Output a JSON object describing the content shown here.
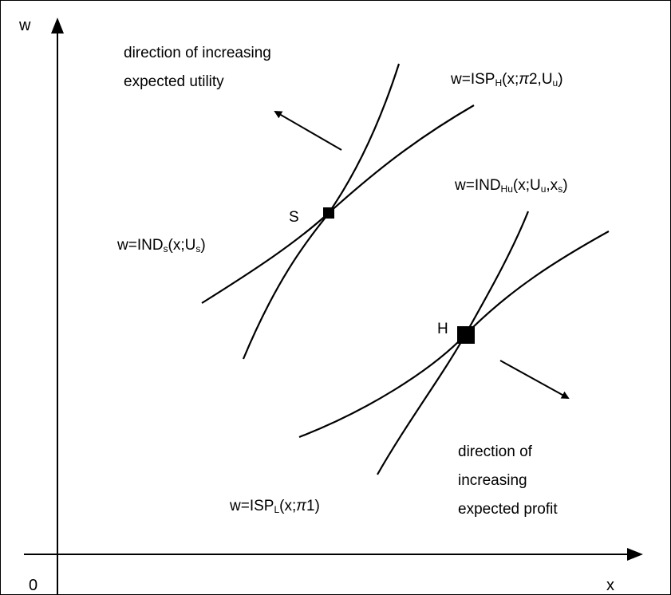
{
  "axes": {
    "y_label": "w",
    "x_label": "x",
    "origin_label": "0"
  },
  "points": {
    "s_label": "S",
    "h_label": "H"
  },
  "curves": {
    "isp_h": {
      "pre": "w=ISP",
      "sub1": "H",
      "mid": "(x;",
      "pi": "π",
      "post1": "2,U",
      "sub2": "u",
      "post2": ")"
    },
    "ind_hu": {
      "pre": "w=IND",
      "sub1": "Hu",
      "mid1": "(x;U",
      "sub2": "u",
      "mid2": ",x",
      "sub3": "s",
      "post": ")"
    },
    "ind_s": {
      "pre": "w=IND",
      "sub1": "s",
      "mid": "(x;U",
      "sub2": "s",
      "post": ")"
    },
    "isp_l": {
      "pre": "w=ISP",
      "sub1": "L",
      "mid": "(x;",
      "pi": "π",
      "post": "1)"
    }
  },
  "annotations": {
    "utility_line1": "direction of increasing",
    "utility_line2": "expected utility",
    "profit_line1": "direction of",
    "profit_line2": "increasing",
    "profit_line3": "expected profit"
  }
}
